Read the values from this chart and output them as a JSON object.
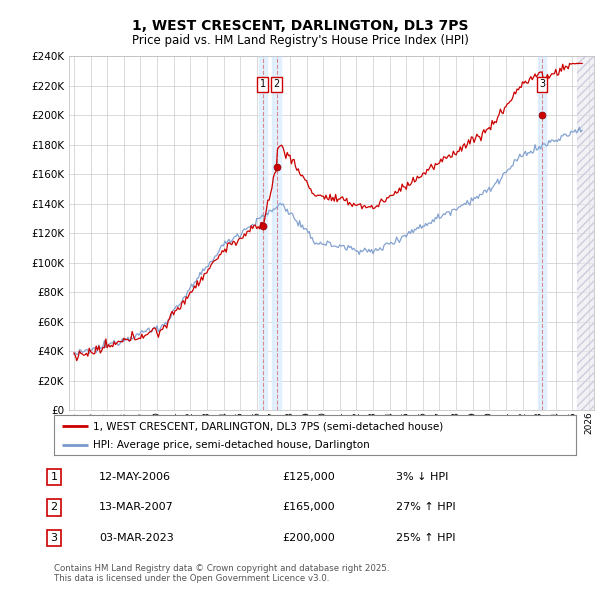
{
  "title": "1, WEST CRESCENT, DARLINGTON, DL3 7PS",
  "subtitle": "Price paid vs. HM Land Registry's House Price Index (HPI)",
  "ylim": [
    0,
    240000
  ],
  "yticks": [
    0,
    20000,
    40000,
    60000,
    80000,
    100000,
    120000,
    140000,
    160000,
    180000,
    200000,
    220000,
    240000
  ],
  "xlim_start": 1994.7,
  "xlim_end": 2026.3,
  "transactions": [
    {
      "num": 1,
      "date": "12-MAY-2006",
      "price": 125000,
      "pct": "3%",
      "dir": "↓",
      "year": 2006.36
    },
    {
      "num": 2,
      "date": "13-MAR-2007",
      "price": 165000,
      "pct": "27%",
      "dir": "↑",
      "year": 2007.19
    },
    {
      "num": 3,
      "date": "03-MAR-2023",
      "price": 200000,
      "pct": "25%",
      "dir": "↑",
      "year": 2023.17
    }
  ],
  "legend_line1": "1, WEST CRESCENT, DARLINGTON, DL3 7PS (semi-detached house)",
  "legend_line2": "HPI: Average price, semi-detached house, Darlington",
  "footer": "Contains HM Land Registry data © Crown copyright and database right 2025.\nThis data is licensed under the Open Government Licence v3.0.",
  "red_color": "#cc0000",
  "blue_color": "#7799cc",
  "bg_color": "#ffffff",
  "grid_color": "#cccccc"
}
